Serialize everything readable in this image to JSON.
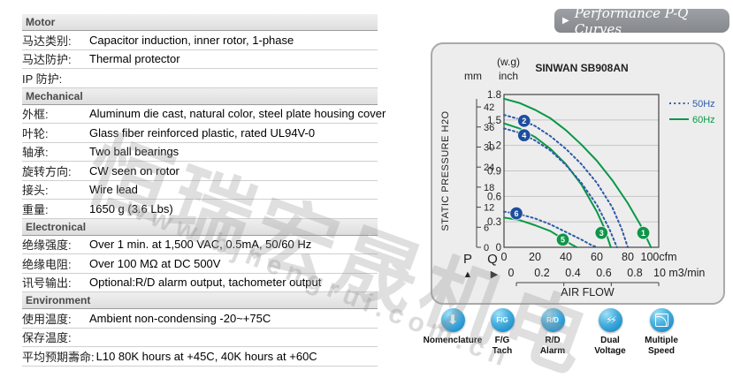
{
  "table": {
    "sections": [
      {
        "title": "Motor",
        "rows": [
          {
            "label": "马达类别:",
            "value": "Capacitor induction, inner rotor, 1-phase"
          },
          {
            "label": "马达防护:",
            "value": "Thermal protector"
          },
          {
            "label": "IP 防护:",
            "value": ""
          }
        ]
      },
      {
        "title": "Mechanical",
        "rows": [
          {
            "label": "外框:",
            "value": "Aluminum die cast, natural color, steel plate housing cover"
          },
          {
            "label": "叶轮:",
            "value": "Glass fiber reinforced plastic, rated UL94V-0"
          },
          {
            "label": "轴承:",
            "value": "Two ball bearings"
          },
          {
            "label": "旋转方向:",
            "value": "CW seen on rotor"
          },
          {
            "label": "接头:",
            "value": "Wire lead"
          },
          {
            "label": "重量:",
            "value": "1650 g (3.6 Lbs)"
          }
        ]
      },
      {
        "title": "Electronical",
        "rows": [
          {
            "label": "绝缘强度:",
            "value": "Over 1 min. at 1,500 VAC, 0.5mA, 50/60 Hz"
          },
          {
            "label": "绝缘电阻:",
            "value": "Over 100 MΩ at DC 500V"
          },
          {
            "label": "讯号输出:",
            "value": "Optional:R/D alarm output, tachometer output"
          }
        ]
      },
      {
        "title": "Environment",
        "rows": [
          {
            "label": "使用温度:",
            "value": "Ambient non-condensing -20~+75C"
          },
          {
            "label": "保存温度:",
            "value": ""
          },
          {
            "label": "平均预期壽命:",
            "value": "L10 80K hours at +45C, 40K hours at +60C"
          }
        ]
      }
    ]
  },
  "banner": {
    "arrow": "▶",
    "title": "Performance P-Q Curves"
  },
  "chart_data": {
    "type": "line",
    "title": "SINWAN SB908AN",
    "xlabel": "AIR FLOW",
    "ylabel": "STATIC PRESSURE H2O",
    "y_unit_left": "mm",
    "y_unit_right_1": "(w.g)",
    "y_unit_right_2": "inch",
    "p_label": "P",
    "p_arrow": "▲",
    "q_label": "Q",
    "q_arrow": "▶",
    "xlim": [
      0,
      100
    ],
    "ylim": [
      0,
      1.8
    ],
    "grid": "horizontal",
    "x_ticks_cfm": [
      "0",
      "20",
      "40",
      "60",
      "80",
      "100cfm"
    ],
    "x_ticks_m3min": [
      "0",
      "0.2",
      "0.4",
      "0.6",
      "0.8",
      "10 m3/min"
    ],
    "y_ticks_inch": [
      1.8,
      1.5,
      1.2,
      0.9,
      0.6,
      0.3,
      0
    ],
    "y_ticks_mm": [
      42,
      36,
      30,
      24,
      18,
      12,
      6,
      0
    ],
    "legend": [
      {
        "label": "50Hz",
        "style": "dotted",
        "color": "blue"
      },
      {
        "label": "60Hz",
        "style": "solid",
        "color": "green"
      }
    ],
    "series": [
      {
        "name": "60Hz-high",
        "freq": "60Hz",
        "style": "solid",
        "color": "green",
        "points": [
          [
            0,
            1.75
          ],
          [
            10,
            1.7
          ],
          [
            20,
            1.62
          ],
          [
            30,
            1.52
          ],
          [
            40,
            1.38
          ],
          [
            50,
            1.21
          ],
          [
            60,
            1.02
          ],
          [
            70,
            0.79
          ],
          [
            80,
            0.52
          ],
          [
            88,
            0.27
          ],
          [
            95,
            0
          ]
        ]
      },
      {
        "name": "50Hz-high",
        "freq": "50Hz",
        "style": "dotted",
        "color": "blue",
        "points": [
          [
            0,
            1.56
          ],
          [
            10,
            1.51
          ],
          [
            20,
            1.43
          ],
          [
            30,
            1.31
          ],
          [
            40,
            1.16
          ],
          [
            50,
            0.98
          ],
          [
            60,
            0.76
          ],
          [
            70,
            0.47
          ],
          [
            76,
            0.22
          ],
          [
            80,
            0
          ]
        ]
      },
      {
        "name": "60Hz-mid",
        "freq": "60Hz",
        "style": "solid",
        "color": "green",
        "points": [
          [
            0,
            1.46
          ],
          [
            10,
            1.4
          ],
          [
            20,
            1.3
          ],
          [
            30,
            1.16
          ],
          [
            40,
            0.98
          ],
          [
            50,
            0.74
          ],
          [
            60,
            0.42
          ],
          [
            65,
            0.22
          ],
          [
            69,
            0
          ]
        ]
      },
      {
        "name": "50Hz-mid",
        "freq": "50Hz",
        "style": "dotted",
        "color": "blue",
        "points": [
          [
            0,
            1.4
          ],
          [
            10,
            1.35
          ],
          [
            20,
            1.26
          ],
          [
            30,
            1.14
          ],
          [
            40,
            0.97
          ],
          [
            50,
            0.76
          ],
          [
            60,
            0.5
          ],
          [
            68,
            0.22
          ],
          [
            73,
            0
          ]
        ]
      },
      {
        "name": "60Hz-low",
        "freq": "60Hz",
        "style": "solid",
        "color": "green",
        "points": [
          [
            0,
            0.35
          ],
          [
            10,
            0.32
          ],
          [
            20,
            0.26
          ],
          [
            30,
            0.19
          ],
          [
            38,
            0.1
          ],
          [
            43,
            0.04
          ],
          [
            47,
            0
          ]
        ]
      },
      {
        "name": "50Hz-low",
        "freq": "50Hz",
        "style": "dotted",
        "color": "blue",
        "points": [
          [
            0,
            0.42
          ],
          [
            10,
            0.39
          ],
          [
            20,
            0.34
          ],
          [
            30,
            0.27
          ],
          [
            40,
            0.18
          ],
          [
            50,
            0.09
          ],
          [
            56,
            0.03
          ],
          [
            60,
            0
          ]
        ]
      }
    ],
    "badges": [
      {
        "n": "1",
        "x": 90,
        "y": 0.17,
        "color": "green"
      },
      {
        "n": "2",
        "x": 13,
        "y": 1.49,
        "color": "blue"
      },
      {
        "n": "3",
        "x": 63,
        "y": 0.17,
        "color": "green"
      },
      {
        "n": "4",
        "x": 13,
        "y": 1.32,
        "color": "blue"
      },
      {
        "n": "5",
        "x": 38,
        "y": 0.09,
        "color": "green"
      },
      {
        "n": "6",
        "x": 8,
        "y": 0.4,
        "color": "blue"
      }
    ]
  },
  "icons": [
    {
      "name": "nomenclature",
      "glyph": "arrow-down",
      "glyph_text": "⬇",
      "label_lines": [
        "Nomenclature"
      ]
    },
    {
      "name": "fg-tach",
      "glyph": "text",
      "glyph_text": "F/G",
      "label_lines": [
        "F/G",
        "Tach"
      ]
    },
    {
      "name": "rd-alarm",
      "glyph": "text",
      "glyph_text": "R/D",
      "label_lines": [
        "R/D",
        "Alarm"
      ]
    },
    {
      "name": "dual-voltage",
      "glyph": "lightning",
      "glyph_text": "⚡⚡",
      "label_lines": [
        "Dual",
        "Voltage"
      ]
    },
    {
      "name": "multiple-speed",
      "glyph": "speed-curve",
      "glyph_text": "",
      "label_lines": [
        "Multiple",
        "Speed"
      ]
    }
  ],
  "watermark": {
    "text": "恒瑞宏晟机电",
    "url": "www.bjhengrui.com.cn"
  },
  "colors": {
    "blue": "#2e5aa8",
    "green": "#089848",
    "badge_blue": "#1d4e9c",
    "badge_green": "#11944a",
    "grid": "#c4c4c4",
    "axis": "#444444"
  }
}
